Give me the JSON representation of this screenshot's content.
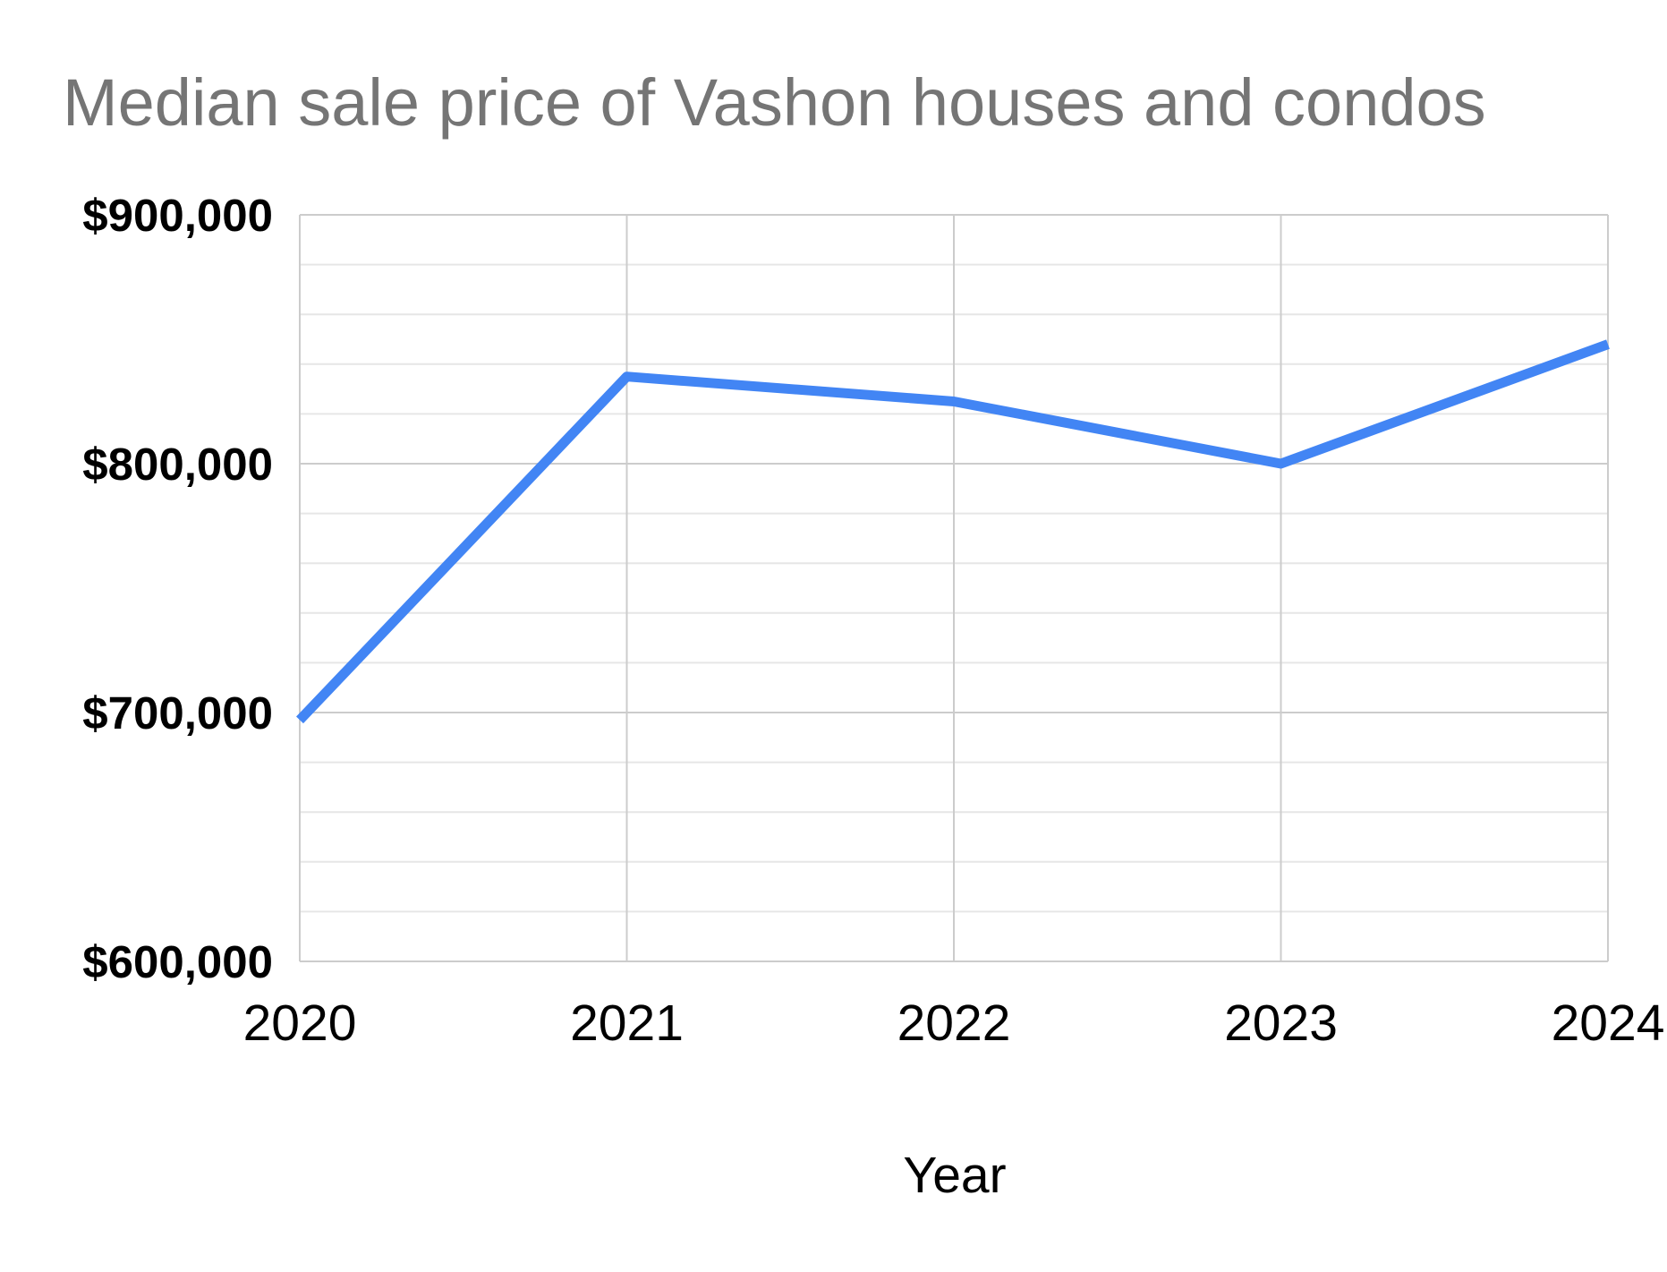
{
  "chart_data": {
    "type": "line",
    "title": "Median sale price of Vashon houses and condos",
    "xlabel": "Year",
    "ylabel": "",
    "x": [
      "2020",
      "2021",
      "2022",
      "2023",
      "2024"
    ],
    "series": [
      {
        "values": [
          697000,
          835000,
          825000,
          800000,
          848000
        ],
        "color": "#4285f4"
      }
    ],
    "ylim": [
      600000,
      900000
    ],
    "y_ticks": [
      {
        "value": 900000,
        "label": "$900,000"
      },
      {
        "value": 800000,
        "label": "$800,000"
      },
      {
        "value": 700000,
        "label": "$700,000"
      },
      {
        "value": 600000,
        "label": "$600,000"
      }
    ],
    "minor_gridlines_per_major": 4,
    "grid": true,
    "legend": "none",
    "colors": {
      "title": "#757575",
      "major_grid": "#cccccc",
      "minor_grid": "#e6e6e6",
      "tick_text": "#000000"
    }
  }
}
